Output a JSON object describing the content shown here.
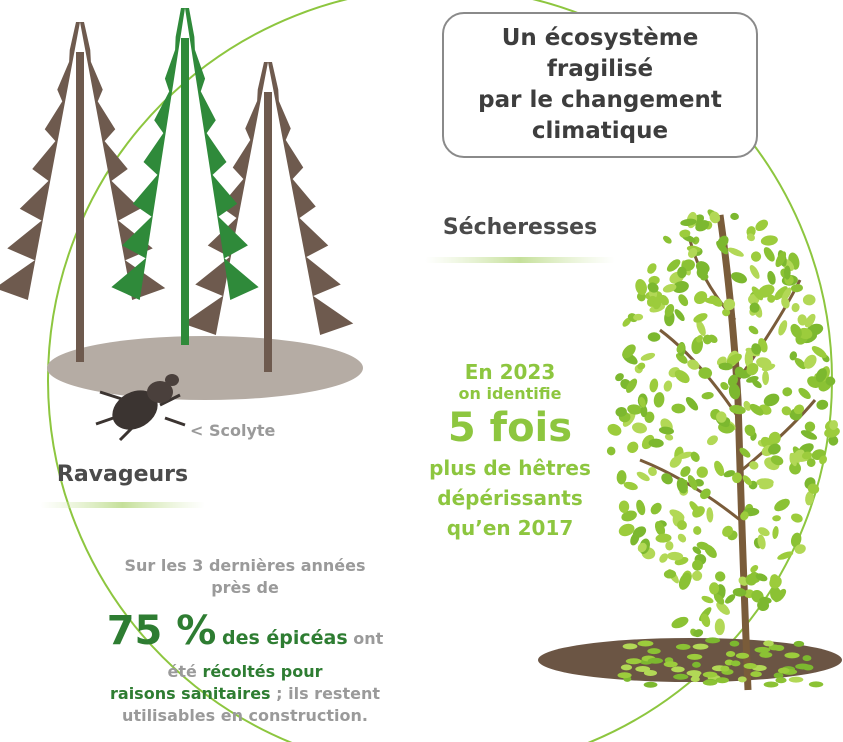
{
  "title_box": {
    "lines": [
      "Un écosystème",
      "fragilisé",
      "par le changement",
      "climatique"
    ]
  },
  "drought": {
    "heading": "Sécheresses",
    "stat": {
      "line1": "En 2023",
      "line2": "on identifie",
      "highlight": "5 fois",
      "line3": "plus de hêtres",
      "line4": "dépérissants",
      "line5": "qu’en 2017"
    }
  },
  "pests": {
    "heading": "Ravageurs",
    "beetle_label": "< Scolyte",
    "stat": {
      "line1": "Sur les 3 dernières années",
      "line2": "près de",
      "big": "75 %",
      "species": "des épicéas",
      "verb": "ont",
      "was": "été",
      "harvested": "récoltés pour",
      "reason": "raisons sanitaires",
      "rest": "; ils restent",
      "use": "utilisables en construction."
    }
  }
}
